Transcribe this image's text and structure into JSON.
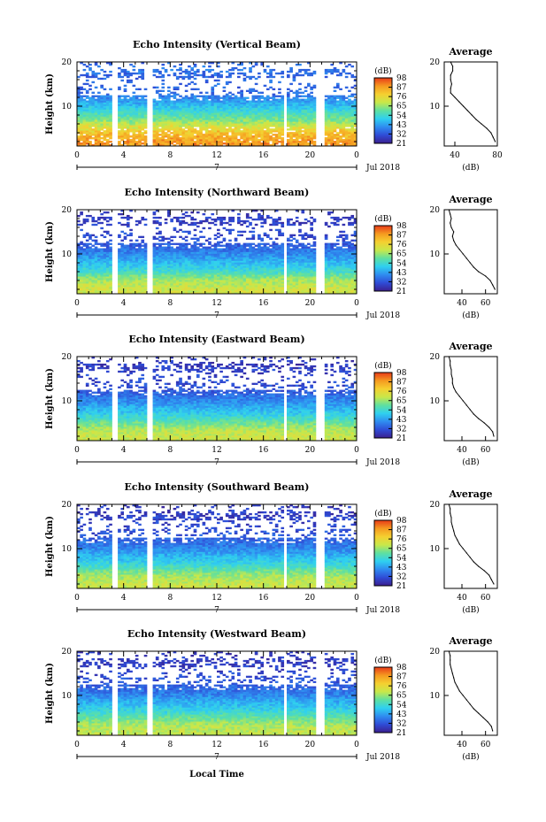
{
  "figure": {
    "x_axis_label": "Local Time",
    "date_label": "Jul 2018",
    "day_label": "7",
    "colorbar_unit": "(dB)",
    "avg_title": "Average",
    "avg_xlabel": "(dB)",
    "height_label": "Height (km)"
  },
  "colors": {
    "colormap": [
      "#3b1f8f",
      "#2f4cd6",
      "#2f8cf0",
      "#2fd0f0",
      "#5fe0a0",
      "#c8e84a",
      "#f5d030",
      "#f59a20",
      "#e83a18"
    ],
    "gap": "#ffffff",
    "line": "#000000"
  },
  "chart_data": [
    {
      "type": "heatmap",
      "title": "Echo Intensity (Vertical Beam)",
      "ylabel": "Height (km)",
      "ylim": [
        1,
        20
      ],
      "yticks": [
        "20",
        "10"
      ],
      "xlim": [
        0,
        24
      ],
      "xticks": [
        "0",
        "4",
        "8",
        "12",
        "16",
        "20",
        "0"
      ],
      "colorbar": {
        "unit": "(dB)",
        "ticks": [
          "98",
          "87",
          "76",
          "65",
          "54",
          "43",
          "32",
          "21"
        ],
        "range": [
          21,
          98
        ]
      },
      "data_gaps_hours": [
        [
          3.0,
          3.4
        ],
        [
          5.9,
          6.6
        ],
        [
          17.8,
          18.1
        ],
        [
          20.6,
          21.2
        ]
      ],
      "average_profile": {
        "title": "Average",
        "xlabel": "(dB)",
        "xticks": [
          "40",
          "80"
        ],
        "xlim": [
          30,
          80
        ],
        "yticks": [
          "20",
          "10"
        ],
        "ylim": [
          1,
          20
        ],
        "height_km": [
          2,
          3,
          4,
          5,
          6,
          7,
          8,
          9,
          10,
          11,
          12,
          13,
          14,
          15,
          16,
          17,
          18,
          19,
          20
        ],
        "intensity_db": [
          78,
          76,
          74,
          70,
          65,
          60,
          56,
          52,
          48,
          44,
          40,
          36,
          36,
          37,
          36,
          36,
          38,
          38,
          36
        ]
      }
    },
    {
      "type": "heatmap",
      "title": "Echo Intensity (Northward Beam)",
      "ylabel": "Height (km)",
      "ylim": [
        1,
        20
      ],
      "yticks": [
        "20",
        "10"
      ],
      "xlim": [
        0,
        24
      ],
      "xticks": [
        "0",
        "4",
        "8",
        "12",
        "16",
        "20",
        "0"
      ],
      "colorbar": {
        "unit": "(dB)",
        "ticks": [
          "98",
          "87",
          "76",
          "65",
          "54",
          "43",
          "32",
          "21"
        ],
        "range": [
          21,
          98
        ]
      },
      "data_gaps_hours": [
        [
          3.0,
          3.4
        ],
        [
          5.9,
          6.6
        ],
        [
          17.8,
          18.1
        ],
        [
          20.6,
          21.2
        ]
      ],
      "average_profile": {
        "title": "Average",
        "xlabel": "(dB)",
        "xticks": [
          "40",
          "60"
        ],
        "xlim": [
          25,
          70
        ],
        "yticks": [
          "20",
          "10"
        ],
        "ylim": [
          1,
          20
        ],
        "height_km": [
          2,
          3,
          4,
          5,
          6,
          7,
          8,
          9,
          10,
          11,
          12,
          13,
          14,
          15,
          16,
          17,
          18,
          19,
          20
        ],
        "intensity_db": [
          68,
          66,
          64,
          60,
          54,
          50,
          47,
          44,
          41,
          38,
          35,
          33,
          32,
          33,
          31,
          30,
          31,
          30,
          29
        ]
      }
    },
    {
      "type": "heatmap",
      "title": "Echo Intensity (Eastward Beam)",
      "ylabel": "Height (km)",
      "ylim": [
        1,
        20
      ],
      "yticks": [
        "20",
        "10"
      ],
      "xlim": [
        0,
        24
      ],
      "xticks": [
        "0",
        "4",
        "8",
        "12",
        "16",
        "20",
        "0"
      ],
      "colorbar": {
        "unit": "(dB)",
        "ticks": [
          "98",
          "87",
          "76",
          "65",
          "54",
          "43",
          "32",
          "21"
        ],
        "range": [
          21,
          98
        ]
      },
      "data_gaps_hours": [
        [
          3.0,
          3.4
        ],
        [
          5.9,
          6.6
        ],
        [
          17.8,
          18.1
        ],
        [
          20.6,
          21.2
        ]
      ],
      "average_profile": {
        "title": "Average",
        "xlabel": "(dB)",
        "xticks": [
          "40",
          "60"
        ],
        "xlim": [
          25,
          70
        ],
        "yticks": [
          "20",
          "10"
        ],
        "ylim": [
          1,
          20
        ],
        "height_km": [
          2,
          3,
          4,
          5,
          6,
          7,
          8,
          9,
          10,
          11,
          12,
          13,
          14,
          15,
          16,
          17,
          18,
          19,
          20
        ],
        "intensity_db": [
          67,
          66,
          63,
          59,
          54,
          50,
          47,
          44,
          41,
          38,
          35,
          33,
          32,
          32,
          31,
          31,
          30,
          30,
          29
        ]
      }
    },
    {
      "type": "heatmap",
      "title": "Echo Intensity (Southward Beam)",
      "ylabel": "Height (km)",
      "ylim": [
        1,
        20
      ],
      "yticks": [
        "20",
        "10"
      ],
      "xlim": [
        0,
        24
      ],
      "xticks": [
        "0",
        "4",
        "8",
        "12",
        "16",
        "20",
        "0"
      ],
      "colorbar": {
        "unit": "(dB)",
        "ticks": [
          "98",
          "87",
          "76",
          "65",
          "54",
          "43",
          "32",
          "21"
        ],
        "range": [
          21,
          98
        ]
      },
      "data_gaps_hours": [
        [
          3.0,
          3.4
        ],
        [
          5.9,
          6.6
        ],
        [
          17.8,
          18.1
        ],
        [
          20.6,
          21.2
        ]
      ],
      "average_profile": {
        "title": "Average",
        "xlabel": "(dB)",
        "xticks": [
          "40",
          "60"
        ],
        "xlim": [
          25,
          70
        ],
        "yticks": [
          "20",
          "10"
        ],
        "ylim": [
          1,
          20
        ],
        "height_km": [
          2,
          3,
          4,
          5,
          6,
          7,
          8,
          9,
          10,
          11,
          12,
          13,
          14,
          15,
          16,
          17,
          18,
          19,
          20
        ],
        "intensity_db": [
          67,
          65,
          63,
          59,
          54,
          50,
          47,
          44,
          41,
          38,
          36,
          34,
          33,
          32,
          31,
          31,
          30,
          30,
          29
        ]
      }
    },
    {
      "type": "heatmap",
      "title": "Echo Intensity (Westward Beam)",
      "ylabel": "Height (km)",
      "ylim": [
        1,
        20
      ],
      "yticks": [
        "20",
        "10"
      ],
      "xlim": [
        0,
        24
      ],
      "xticks": [
        "0",
        "4",
        "8",
        "12",
        "16",
        "20",
        "0"
      ],
      "colorbar": {
        "unit": "(dB)",
        "ticks": [
          "98",
          "87",
          "76",
          "65",
          "54",
          "43",
          "32",
          "21"
        ],
        "range": [
          21,
          98
        ]
      },
      "data_gaps_hours": [
        [
          3.0,
          3.4
        ],
        [
          5.9,
          6.6
        ],
        [
          17.8,
          18.1
        ],
        [
          20.6,
          21.2
        ]
      ],
      "average_profile": {
        "title": "Average",
        "xlabel": "(dB)",
        "xticks": [
          "40",
          "60"
        ],
        "xlim": [
          25,
          70
        ],
        "yticks": [
          "20",
          "10"
        ],
        "ylim": [
          1,
          20
        ],
        "height_km": [
          2,
          3,
          4,
          5,
          6,
          7,
          8,
          9,
          10,
          11,
          12,
          13,
          14,
          15,
          16,
          17,
          18,
          19,
          20
        ],
        "intensity_db": [
          66,
          65,
          62,
          58,
          54,
          50,
          47,
          44,
          41,
          38,
          36,
          34,
          33,
          32,
          31,
          30,
          30,
          30,
          29
        ]
      }
    }
  ]
}
